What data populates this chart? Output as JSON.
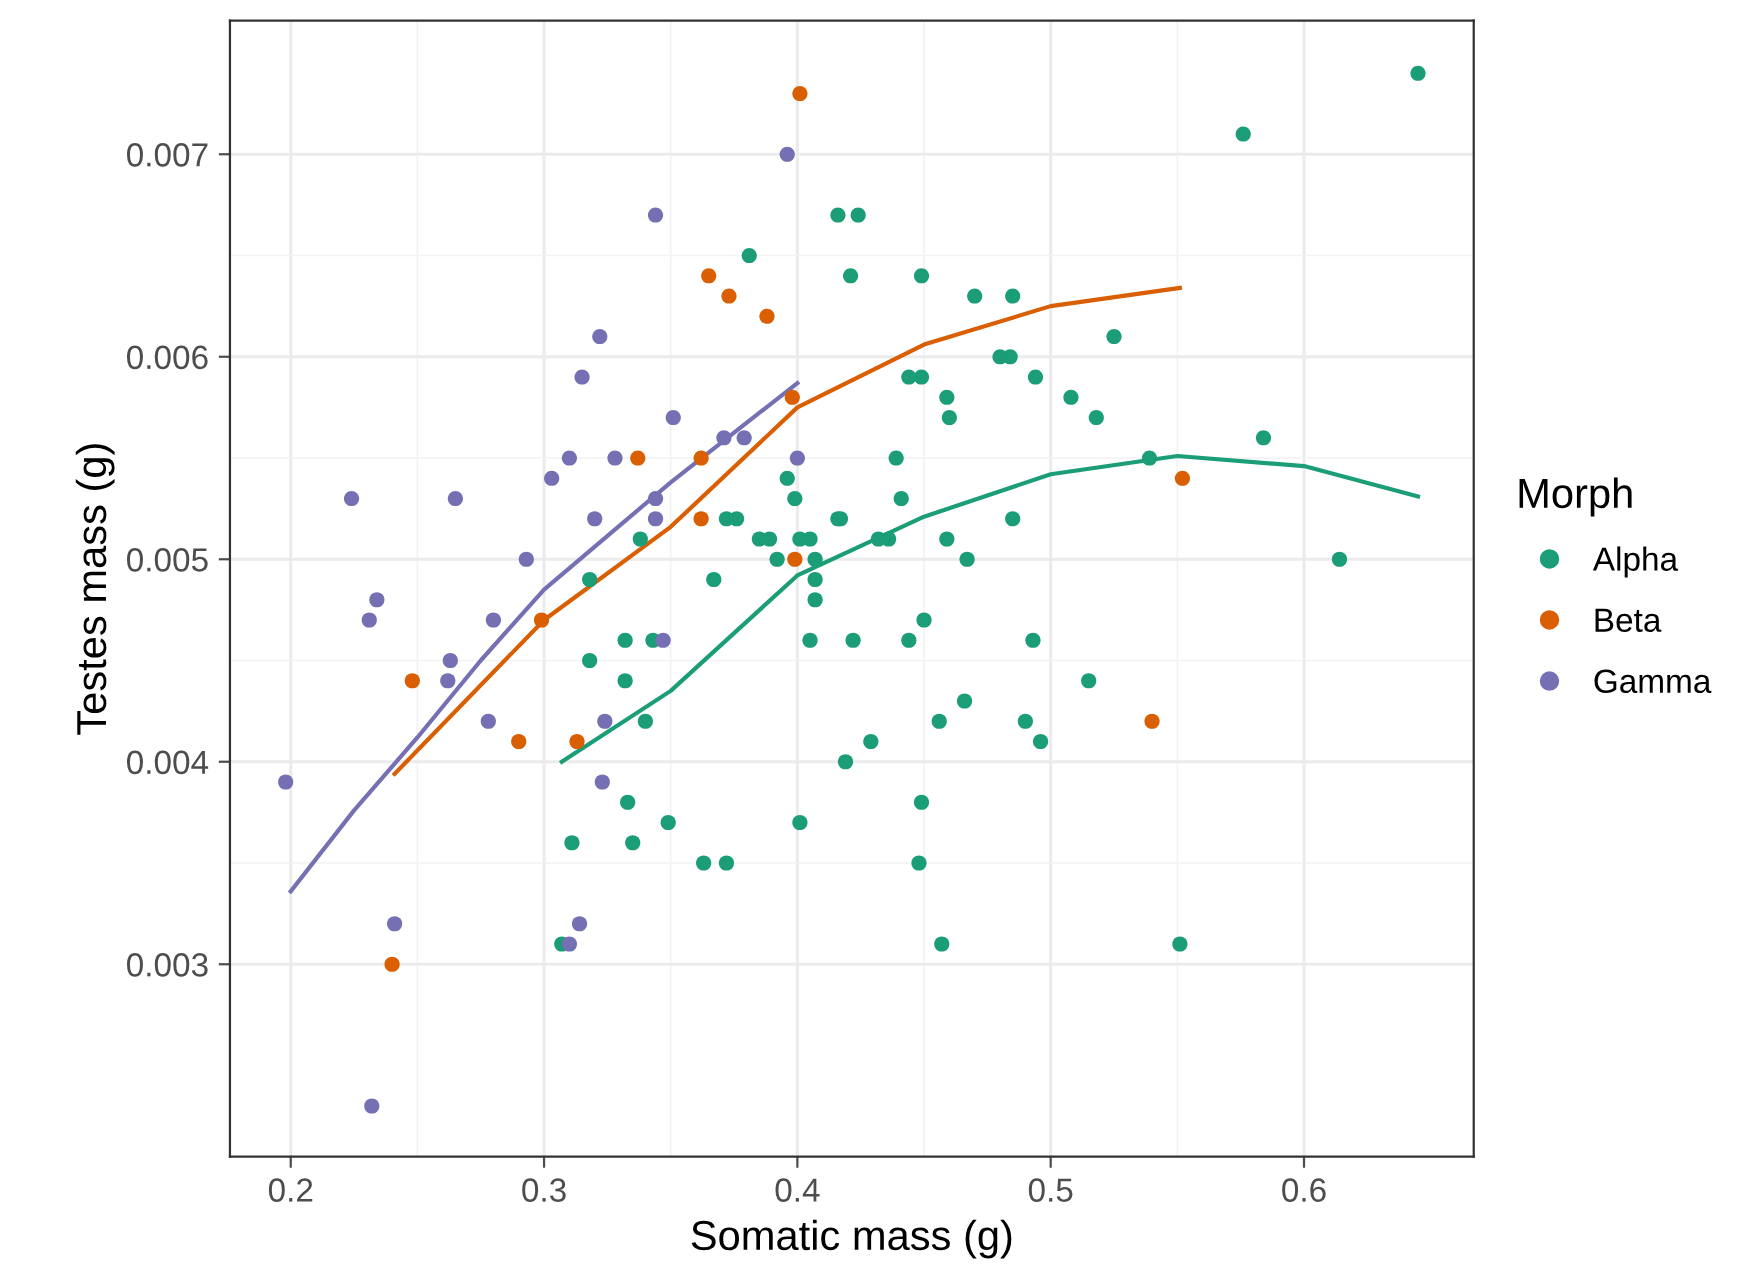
{
  "chart_data": {
    "type": "scatter",
    "xlabel": "Somatic mass (g)",
    "ylabel": "Testes mass (g)",
    "legend_title": "Morph",
    "legend": "right",
    "grid": true,
    "marker": "circle",
    "xlim": [
      0.176,
      0.667
    ],
    "ylim": [
      0.00205,
      0.00766
    ],
    "xticks": [
      0.2,
      0.3,
      0.4,
      0.5,
      0.6
    ],
    "yticks": [
      {
        "value": 0.003,
        "label": "0.003"
      },
      {
        "value": 0.004,
        "label": "0.004"
      },
      {
        "value": 0.005,
        "label": "0.005"
      },
      {
        "value": 0.006,
        "label": "0.006"
      },
      {
        "value": 0.007,
        "label": "0.007"
      }
    ],
    "series": [
      {
        "name": "Alpha",
        "color": "#1b9e77",
        "x": [
          0.416,
          0.424,
          0.381,
          0.421,
          0.396,
          0.399,
          0.416,
          0.372,
          0.376,
          0.385,
          0.389,
          0.401,
          0.405,
          0.392,
          0.407,
          0.407,
          0.407,
          0.338,
          0.318,
          0.367,
          0.645,
          0.576,
          0.449,
          0.47,
          0.485,
          0.525,
          0.48,
          0.484,
          0.444,
          0.449,
          0.494,
          0.459,
          0.508,
          0.46,
          0.518,
          0.584,
          0.439,
          0.539,
          0.441,
          0.417,
          0.485,
          0.432,
          0.436,
          0.459,
          0.467,
          0.614,
          0.405,
          0.422,
          0.444,
          0.45,
          0.493,
          0.515,
          0.466,
          0.456,
          0.49,
          0.496,
          0.429,
          0.419,
          0.449,
          0.448,
          0.457,
          0.551,
          0.401,
          0.332,
          0.343,
          0.318,
          0.332,
          0.34,
          0.333,
          0.349,
          0.311,
          0.335,
          0.363,
          0.372,
          0.307
        ],
        "values": [
          0.0067,
          0.0067,
          0.0065,
          0.0064,
          0.0054,
          0.0053,
          0.0052,
          0.0052,
          0.0052,
          0.0051,
          0.0051,
          0.0051,
          0.0051,
          0.005,
          0.005,
          0.0049,
          0.0048,
          0.0051,
          0.0049,
          0.0049,
          0.0074,
          0.0071,
          0.0064,
          0.0063,
          0.0063,
          0.0061,
          0.006,
          0.006,
          0.0059,
          0.0059,
          0.0059,
          0.0058,
          0.0058,
          0.0057,
          0.0057,
          0.0056,
          0.0055,
          0.0055,
          0.0053,
          0.0052,
          0.0052,
          0.0051,
          0.0051,
          0.0051,
          0.005,
          0.005,
          0.0046,
          0.0046,
          0.0046,
          0.0047,
          0.0046,
          0.0044,
          0.0043,
          0.0042,
          0.0042,
          0.0041,
          0.0041,
          0.004,
          0.0038,
          0.0035,
          0.0031,
          0.0031,
          0.0037,
          0.0046,
          0.0046,
          0.0045,
          0.0044,
          0.0042,
          0.0038,
          0.0037,
          0.0036,
          0.0036,
          0.0035,
          0.0035,
          0.0031
        ]
      },
      {
        "name": "Beta",
        "color": "#d95f02",
        "x": [
          0.401,
          0.365,
          0.373,
          0.388,
          0.398,
          0.337,
          0.362,
          0.362,
          0.399,
          0.299,
          0.248,
          0.29,
          0.313,
          0.24,
          0.552,
          0.54
        ],
        "values": [
          0.0073,
          0.0064,
          0.0063,
          0.0062,
          0.0058,
          0.0055,
          0.0055,
          0.0052,
          0.005,
          0.0047,
          0.0044,
          0.0041,
          0.0041,
          0.003,
          0.0054,
          0.0042
        ]
      },
      {
        "name": "Gamma",
        "color": "#7570b3",
        "x": [
          0.198,
          0.224,
          0.234,
          0.231,
          0.241,
          0.232,
          0.262,
          0.263,
          0.265,
          0.278,
          0.28,
          0.293,
          0.303,
          0.31,
          0.315,
          0.322,
          0.32,
          0.323,
          0.324,
          0.328,
          0.314,
          0.31,
          0.344,
          0.344,
          0.344,
          0.347,
          0.351,
          0.371,
          0.379,
          0.396,
          0.4
        ],
        "values": [
          0.0039,
          0.0053,
          0.0048,
          0.0047,
          0.0032,
          0.0023,
          0.0044,
          0.0045,
          0.0053,
          0.0042,
          0.0047,
          0.005,
          0.0054,
          0.0055,
          0.0059,
          0.0061,
          0.0052,
          0.0039,
          0.0042,
          0.0055,
          0.0032,
          0.0031,
          0.0067,
          0.0053,
          0.0052,
          0.0046,
          0.0057,
          0.0056,
          0.0056,
          0.007,
          0.0055
        ]
      },
      {
        "type": "line",
        "marker": "none",
        "color": "#1b9e77",
        "x": [
          0.307,
          0.35,
          0.4,
          0.45,
          0.5,
          0.55,
          0.6,
          0.645
        ],
        "values": [
          0.004,
          0.00435,
          0.00492,
          0.00521,
          0.00542,
          0.00551,
          0.00546,
          0.00531
        ]
      },
      {
        "type": "line",
        "marker": "none",
        "color": "#d95f02",
        "x": [
          0.241,
          0.3,
          0.35,
          0.4,
          0.45,
          0.5,
          0.551
        ],
        "values": [
          0.00394,
          0.0047,
          0.00516,
          0.00575,
          0.00606,
          0.00625,
          0.00634
        ]
      },
      {
        "type": "line",
        "marker": "none",
        "color": "#7570b3",
        "x": [
          0.2,
          0.225,
          0.25,
          0.275,
          0.3,
          0.35,
          0.4
        ],
        "values": [
          0.00336,
          0.00376,
          0.00412,
          0.0045,
          0.00485,
          0.00538,
          0.00587
        ]
      }
    ]
  }
}
